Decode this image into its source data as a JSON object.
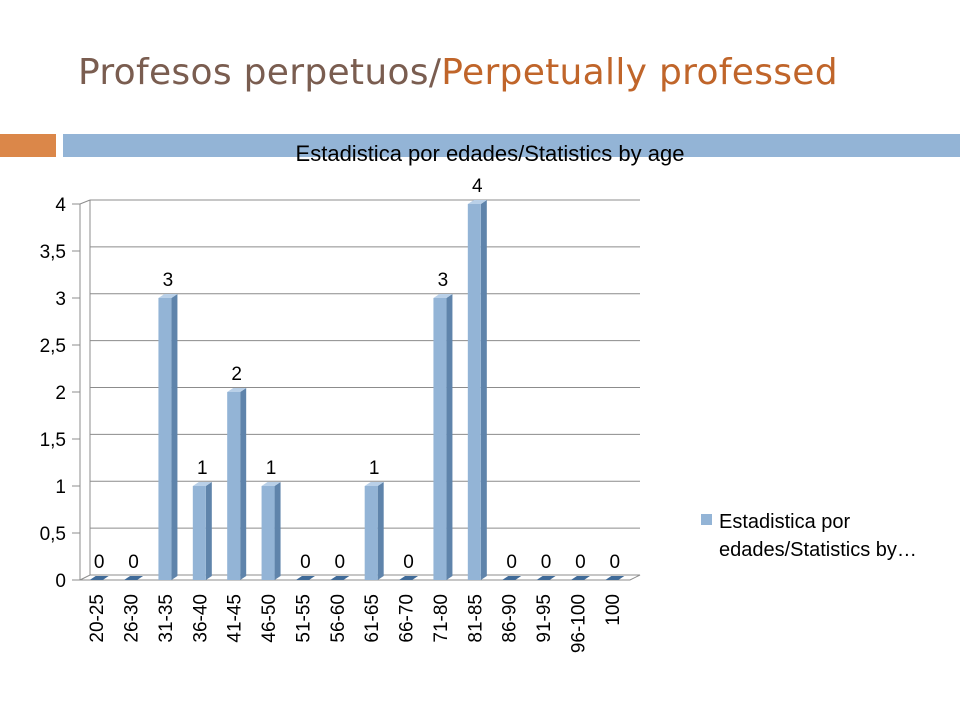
{
  "slide": {
    "title_part1": "Profesos perpetuos/",
    "title_part2": "Perpetually professed"
  },
  "colors": {
    "title_gray": "#7a5d50",
    "title_orange": "#c0652a",
    "accent_orange": "#db8749",
    "accent_blue": "#93b4d6",
    "bar_fill": "#93b4d6",
    "bar_side": "#5f84ab"
  },
  "chart_data": {
    "type": "bar",
    "title": "Estadistica por edades/Statistics by age",
    "categories": [
      "20-25",
      "26-30",
      "31-35",
      "36-40",
      "41-45",
      "46-50",
      "51-55",
      "56-60",
      "61-65",
      "66-70",
      "71-80",
      "81-85",
      "86-90",
      "91-95",
      "96-100",
      "100"
    ],
    "series": [
      {
        "name": "Estadistica por edades/Statistics by…",
        "values": [
          0,
          0,
          3,
          1,
          2,
          1,
          0,
          0,
          1,
          0,
          3,
          4,
          0,
          0,
          0,
          0
        ]
      }
    ],
    "ylim": [
      0,
      4
    ],
    "yticks": [
      0,
      0.5,
      1,
      1.5,
      2,
      2.5,
      3,
      3.5,
      4
    ],
    "ytick_labels": [
      "0",
      "0,5",
      "1",
      "1,5",
      "2",
      "2,5",
      "3",
      "3,5",
      "4"
    ],
    "xlabel": "",
    "ylabel": "",
    "grid": true,
    "legend_position": "right",
    "data_labels": true
  }
}
